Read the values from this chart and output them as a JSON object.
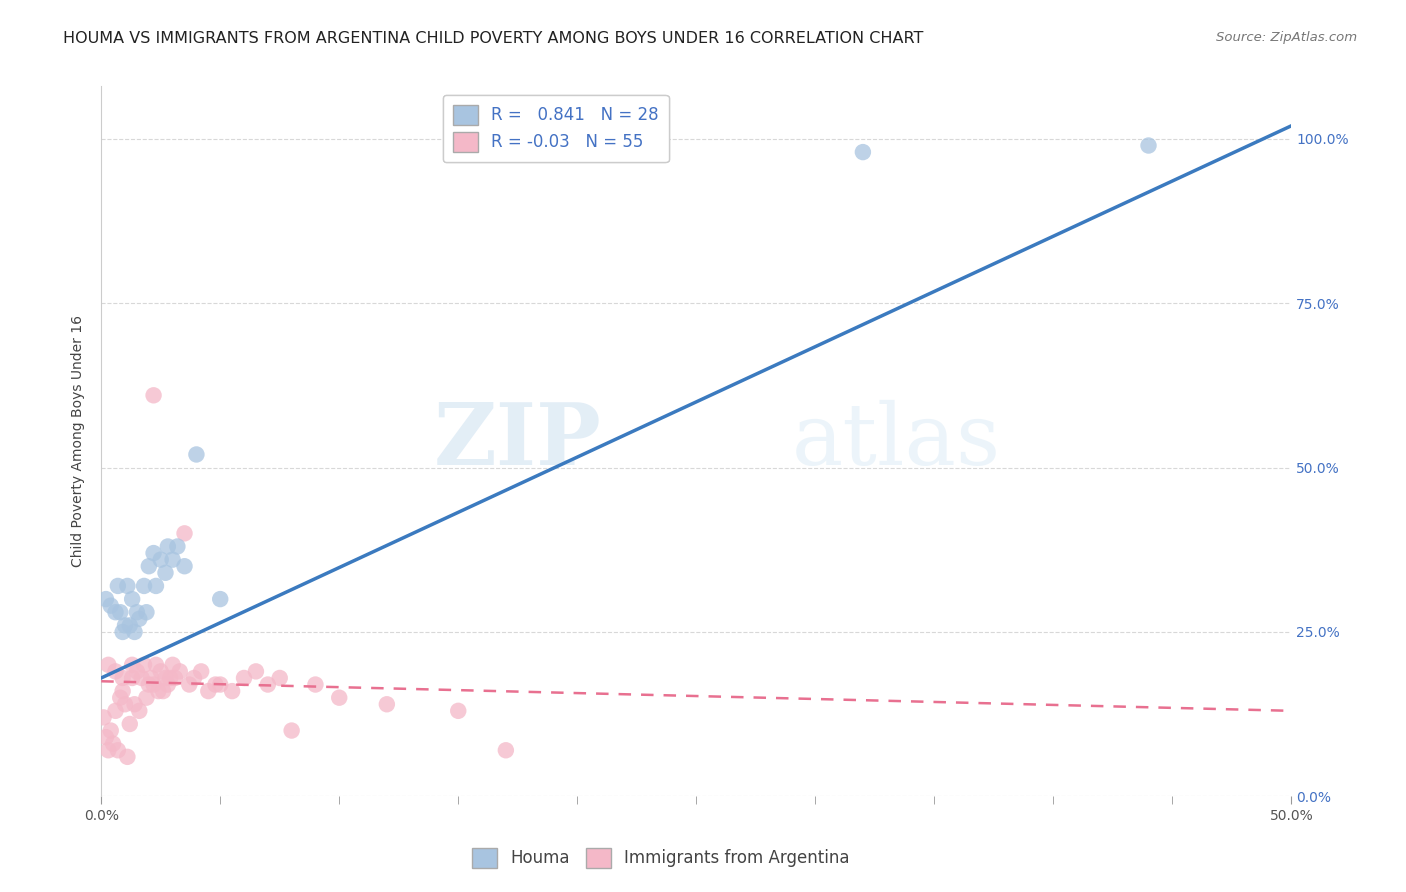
{
  "title": "HOUMA VS IMMIGRANTS FROM ARGENTINA CHILD POVERTY AMONG BOYS UNDER 16 CORRELATION CHART",
  "source": "Source: ZipAtlas.com",
  "ylabel": "Child Poverty Among Boys Under 16",
  "xlim": [
    0.0,
    0.5
  ],
  "ylim": [
    0.0,
    1.05
  ],
  "xtick_positions": [
    0.0,
    0.5
  ],
  "xticklabels": [
    "0.0%",
    "50.0%"
  ],
  "yticks": [
    0.0,
    0.25,
    0.5,
    0.75,
    1.0
  ],
  "yticklabels": [
    "0.0%",
    "25.0%",
    "50.0%",
    "75.0%",
    "100.0%"
  ],
  "houma_R": 0.841,
  "houma_N": 28,
  "argentina_R": -0.03,
  "argentina_N": 55,
  "houma_color": "#a8c4e0",
  "houma_line_color": "#3b7abf",
  "argentina_color": "#f4b8c8",
  "argentina_line_color": "#e87090",
  "background_color": "#ffffff",
  "grid_color": "#d8d8d8",
  "houma_x": [
    0.002,
    0.004,
    0.006,
    0.007,
    0.008,
    0.009,
    0.01,
    0.011,
    0.012,
    0.013,
    0.014,
    0.015,
    0.016,
    0.018,
    0.019,
    0.02,
    0.022,
    0.023,
    0.025,
    0.027,
    0.028,
    0.03,
    0.032,
    0.035,
    0.04,
    0.05,
    0.32,
    0.44
  ],
  "houma_y": [
    0.3,
    0.29,
    0.28,
    0.32,
    0.28,
    0.25,
    0.26,
    0.32,
    0.26,
    0.3,
    0.25,
    0.28,
    0.27,
    0.32,
    0.28,
    0.35,
    0.37,
    0.32,
    0.36,
    0.34,
    0.38,
    0.36,
    0.38,
    0.35,
    0.52,
    0.3,
    0.98,
    0.99
  ],
  "argentina_x": [
    0.001,
    0.002,
    0.003,
    0.004,
    0.005,
    0.006,
    0.007,
    0.008,
    0.009,
    0.01,
    0.011,
    0.012,
    0.013,
    0.014,
    0.015,
    0.016,
    0.017,
    0.018,
    0.019,
    0.02,
    0.021,
    0.022,
    0.023,
    0.024,
    0.025,
    0.026,
    0.027,
    0.028,
    0.029,
    0.03,
    0.031,
    0.033,
    0.035,
    0.037,
    0.039,
    0.042,
    0.045,
    0.048,
    0.05,
    0.055,
    0.06,
    0.065,
    0.07,
    0.075,
    0.08,
    0.09,
    0.1,
    0.12,
    0.15,
    0.17,
    0.003,
    0.006,
    0.009,
    0.013,
    0.022
  ],
  "argentina_y": [
    0.12,
    0.09,
    0.07,
    0.1,
    0.08,
    0.13,
    0.07,
    0.15,
    0.18,
    0.14,
    0.06,
    0.11,
    0.18,
    0.14,
    0.19,
    0.13,
    0.18,
    0.2,
    0.15,
    0.17,
    0.18,
    0.17,
    0.2,
    0.16,
    0.19,
    0.16,
    0.18,
    0.17,
    0.18,
    0.2,
    0.18,
    0.19,
    0.4,
    0.17,
    0.18,
    0.19,
    0.16,
    0.17,
    0.17,
    0.16,
    0.18,
    0.19,
    0.17,
    0.18,
    0.1,
    0.17,
    0.15,
    0.14,
    0.13,
    0.07,
    0.2,
    0.19,
    0.16,
    0.2,
    0.61
  ],
  "watermark_zip": "ZIP",
  "watermark_atlas": "atlas",
  "title_fontsize": 11.5,
  "axis_label_fontsize": 10,
  "tick_fontsize": 10,
  "legend_fontsize": 12
}
